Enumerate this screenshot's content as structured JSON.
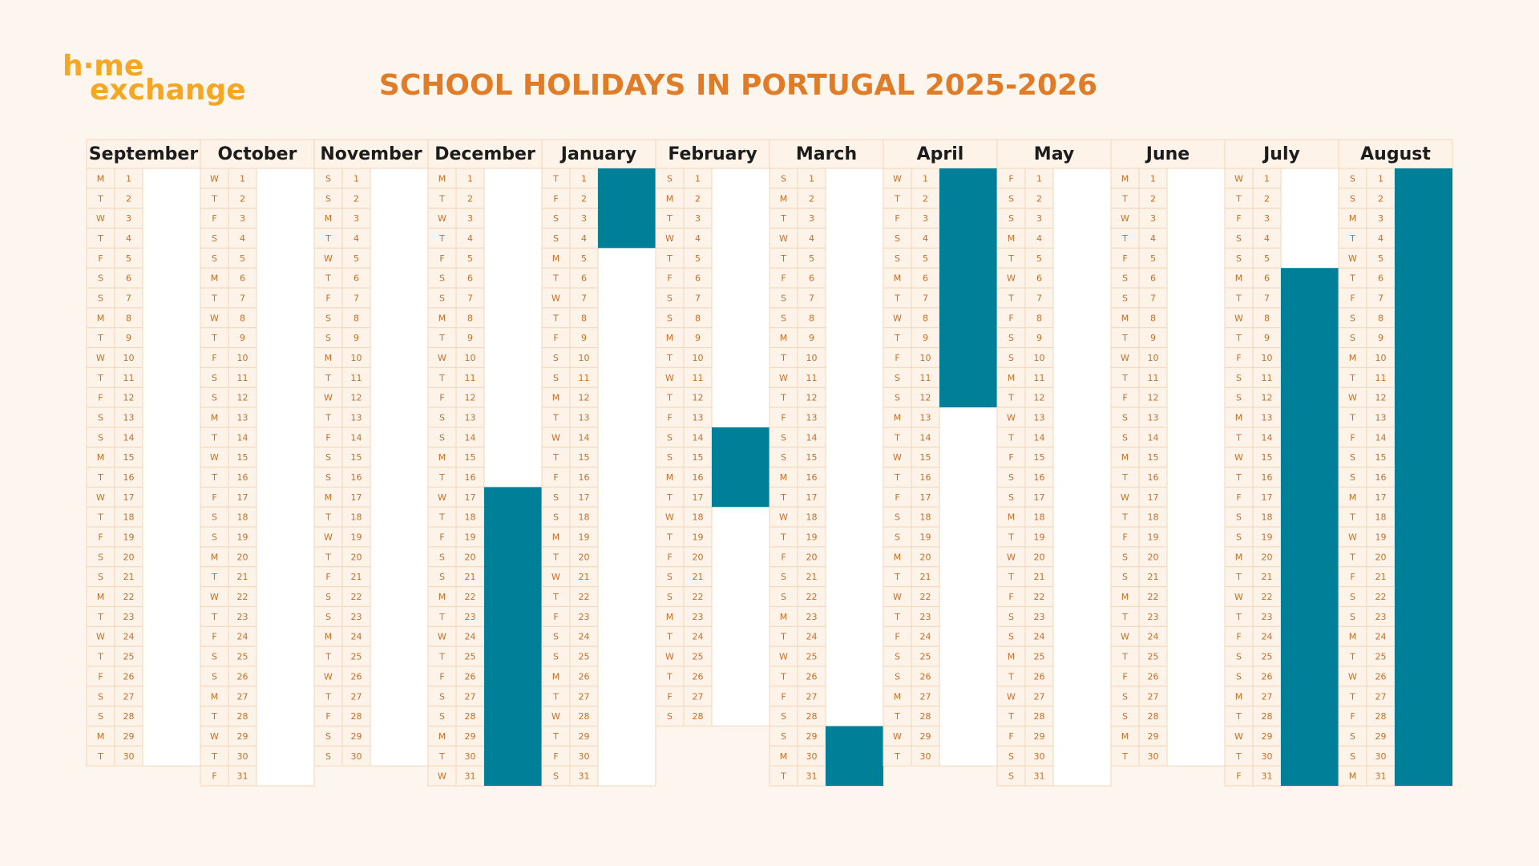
{
  "logo": [
    "h·me",
    "exchange"
  ],
  "title": "SCHOOL HOLIDAYS IN PORTUGAL 2025-2026",
  "months": [
    {
      "name": "September",
      "weekdays": [
        "M",
        "T",
        "W",
        "T",
        "F",
        "S",
        "S",
        "M",
        "T",
        "W",
        "T",
        "F",
        "S",
        "S",
        "M",
        "T",
        "W",
        "T",
        "F",
        "S",
        "S",
        "M",
        "T",
        "W",
        "T",
        "F",
        "S",
        "S",
        "M",
        "T"
      ],
      "dates": [
        1,
        2,
        3,
        4,
        5,
        6,
        7,
        8,
        9,
        10,
        11,
        12,
        13,
        14,
        15,
        16,
        17,
        18,
        19,
        20,
        21,
        22,
        23,
        24,
        25,
        26,
        27,
        28,
        29,
        30
      ],
      "holidays": []
    },
    {
      "name": "October",
      "weekdays": [
        "W",
        "T",
        "F",
        "S",
        "S",
        "M",
        "T",
        "W",
        "T",
        "F",
        "S",
        "S",
        "M",
        "T",
        "W",
        "T",
        "F",
        "S",
        "S",
        "M",
        "T",
        "W",
        "T",
        "F",
        "S",
        "S",
        "M",
        "T",
        "W",
        "T",
        "F"
      ],
      "dates": [
        1,
        2,
        3,
        4,
        5,
        6,
        7,
        8,
        9,
        10,
        11,
        12,
        13,
        14,
        15,
        16,
        17,
        18,
        19,
        20,
        21,
        22,
        23,
        24,
        25,
        26,
        27,
        28,
        29,
        30,
        31
      ],
      "holidays": []
    },
    {
      "name": "November",
      "weekdays": [
        "S",
        "S",
        "M",
        "T",
        "W",
        "T",
        "F",
        "S",
        "S",
        "M",
        "T",
        "W",
        "T",
        "F",
        "S",
        "S",
        "M",
        "T",
        "W",
        "T",
        "F",
        "S",
        "S",
        "M",
        "T",
        "W",
        "T",
        "F",
        "S",
        "S"
      ],
      "dates": [
        1,
        2,
        3,
        4,
        5,
        6,
        7,
        8,
        9,
        10,
        11,
        12,
        13,
        14,
        15,
        16,
        17,
        18,
        19,
        20,
        21,
        22,
        23,
        24,
        25,
        26,
        27,
        28,
        29,
        30
      ],
      "holidays": []
    },
    {
      "name": "December",
      "weekdays": [
        "M",
        "T",
        "W",
        "T",
        "F",
        "S",
        "S",
        "M",
        "T",
        "W",
        "T",
        "F",
        "S",
        "S",
        "M",
        "T",
        "W",
        "T",
        "F",
        "S",
        "S",
        "M",
        "T",
        "W",
        "T",
        "F",
        "S",
        "S",
        "M",
        "T",
        "W"
      ],
      "dates": [
        1,
        2,
        3,
        4,
        5,
        6,
        7,
        8,
        9,
        10,
        11,
        12,
        13,
        14,
        15,
        16,
        17,
        18,
        19,
        20,
        21,
        22,
        23,
        24,
        25,
        26,
        27,
        28,
        29,
        30,
        31
      ],
      "holidays": [
        [
          17,
          31
        ]
      ]
    },
    {
      "name": "January",
      "weekdays": [
        "T",
        "F",
        "S",
        "S",
        "M",
        "T",
        "W",
        "T",
        "F",
        "S",
        "S",
        "M",
        "T",
        "W",
        "T",
        "F",
        "S",
        "S",
        "M",
        "T",
        "W",
        "T",
        "F",
        "S",
        "S",
        "M",
        "T",
        "W",
        "T",
        "F",
        "S"
      ],
      "dates": [
        1,
        2,
        3,
        4,
        5,
        6,
        7,
        8,
        9,
        10,
        11,
        12,
        13,
        14,
        15,
        16,
        17,
        18,
        19,
        20,
        21,
        22,
        23,
        24,
        25,
        26,
        27,
        28,
        29,
        30,
        31
      ],
      "holidays": [
        [
          1,
          4
        ]
      ]
    },
    {
      "name": "February",
      "weekdays": [
        "S",
        "M",
        "T",
        "W",
        "T",
        "F",
        "S",
        "S",
        "M",
        "T",
        "W",
        "T",
        "F",
        "S",
        "S",
        "M",
        "T",
        "W",
        "T",
        "F",
        "S",
        "S",
        "M",
        "T",
        "W",
        "T",
        "F",
        "S"
      ],
      "dates": [
        1,
        2,
        3,
        4,
        5,
        6,
        7,
        8,
        9,
        10,
        11,
        12,
        13,
        14,
        15,
        16,
        17,
        18,
        19,
        20,
        21,
        22,
        23,
        24,
        25,
        26,
        27,
        28
      ],
      "holidays": [
        [
          14,
          17
        ]
      ]
    },
    {
      "name": "March",
      "weekdays": [
        "S",
        "M",
        "T",
        "W",
        "T",
        "F",
        "S",
        "S",
        "M",
        "T",
        "W",
        "T",
        "F",
        "S",
        "S",
        "M",
        "T",
        "W",
        "T",
        "F",
        "S",
        "S",
        "M",
        "T",
        "W",
        "T",
        "F",
        "S",
        "S",
        "M",
        "T"
      ],
      "dates": [
        1,
        2,
        3,
        4,
        5,
        6,
        7,
        8,
        9,
        10,
        11,
        12,
        13,
        14,
        15,
        16,
        17,
        18,
        19,
        20,
        21,
        22,
        23,
        24,
        25,
        26,
        27,
        28,
        29,
        30,
        31
      ],
      "holidays": [
        [
          29,
          31
        ]
      ]
    },
    {
      "name": "April",
      "weekdays": [
        "W",
        "T",
        "F",
        "S",
        "S",
        "M",
        "T",
        "W",
        "T",
        "F",
        "S",
        "S",
        "M",
        "T",
        "W",
        "T",
        "F",
        "S",
        "S",
        "M",
        "T",
        "W",
        "T",
        "F",
        "S",
        "S",
        "M",
        "T",
        "W",
        "T"
      ],
      "dates": [
        1,
        2,
        3,
        4,
        5,
        6,
        7,
        8,
        9,
        10,
        11,
        12,
        13,
        14,
        15,
        16,
        17,
        18,
        19,
        20,
        21,
        22,
        23,
        24,
        25,
        26,
        27,
        28,
        29,
        30
      ],
      "holidays": [
        [
          1,
          12
        ]
      ]
    },
    {
      "name": "May",
      "weekdays": [
        "F",
        "S",
        "S",
        "M",
        "T",
        "W",
        "T",
        "F",
        "S",
        "S",
        "M",
        "T",
        "W",
        "T",
        "F",
        "S",
        "S",
        "M",
        "T",
        "W",
        "T",
        "F",
        "S",
        "S",
        "M",
        "T",
        "W",
        "T",
        "F",
        "S",
        "S"
      ],
      "dates": [
        1,
        2,
        3,
        4,
        5,
        6,
        7,
        8,
        9,
        10,
        11,
        12,
        13,
        14,
        15,
        16,
        17,
        18,
        19,
        20,
        21,
        22,
        23,
        24,
        25,
        26,
        27,
        28,
        29,
        30,
        31
      ],
      "holidays": []
    },
    {
      "name": "June",
      "weekdays": [
        "M",
        "T",
        "W",
        "T",
        "F",
        "S",
        "S",
        "M",
        "T",
        "W",
        "T",
        "F",
        "S",
        "S",
        "M",
        "T",
        "W",
        "T",
        "F",
        "S",
        "S",
        "M",
        "T",
        "W",
        "T",
        "F",
        "S",
        "S",
        "M",
        "T"
      ],
      "dates": [
        1,
        2,
        3,
        4,
        5,
        6,
        7,
        8,
        9,
        10,
        11,
        12,
        13,
        14,
        15,
        16,
        17,
        18,
        19,
        20,
        21,
        22,
        23,
        24,
        25,
        26,
        27,
        28,
        29,
        30
      ],
      "holidays": []
    },
    {
      "name": "July",
      "weekdays": [
        "W",
        "T",
        "F",
        "S",
        "S",
        "M",
        "T",
        "W",
        "T",
        "F",
        "S",
        "S",
        "M",
        "T",
        "W",
        "T",
        "F",
        "S",
        "S",
        "M",
        "T",
        "W",
        "T",
        "F",
        "S",
        "S",
        "M",
        "T",
        "W",
        "T",
        "F"
      ],
      "dates": [
        1,
        2,
        3,
        4,
        5,
        6,
        7,
        8,
        9,
        10,
        11,
        12,
        13,
        14,
        15,
        16,
        17,
        18,
        19,
        20,
        21,
        22,
        23,
        24,
        25,
        26,
        27,
        28,
        29,
        30,
        31
      ],
      "holidays": [
        [
          6,
          31
        ]
      ]
    },
    {
      "name": "August",
      "weekdays": [
        "S",
        "S",
        "M",
        "T",
        "W",
        "T",
        "F",
        "S",
        "S",
        "M",
        "T",
        "W",
        "T",
        "F",
        "S",
        "S",
        "M",
        "T",
        "W",
        "T",
        "F",
        "S",
        "S",
        "M",
        "T",
        "W",
        "T",
        "F",
        "S",
        "S",
        "M"
      ],
      "dates": [
        1,
        2,
        3,
        4,
        5,
        6,
        7,
        8,
        9,
        10,
        11,
        12,
        13,
        14,
        15,
        16,
        17,
        18,
        19,
        20,
        21,
        22,
        23,
        24,
        25,
        26,
        27,
        28,
        29,
        30,
        31
      ],
      "holidays": [
        [
          1,
          31
        ]
      ]
    }
  ]
}
